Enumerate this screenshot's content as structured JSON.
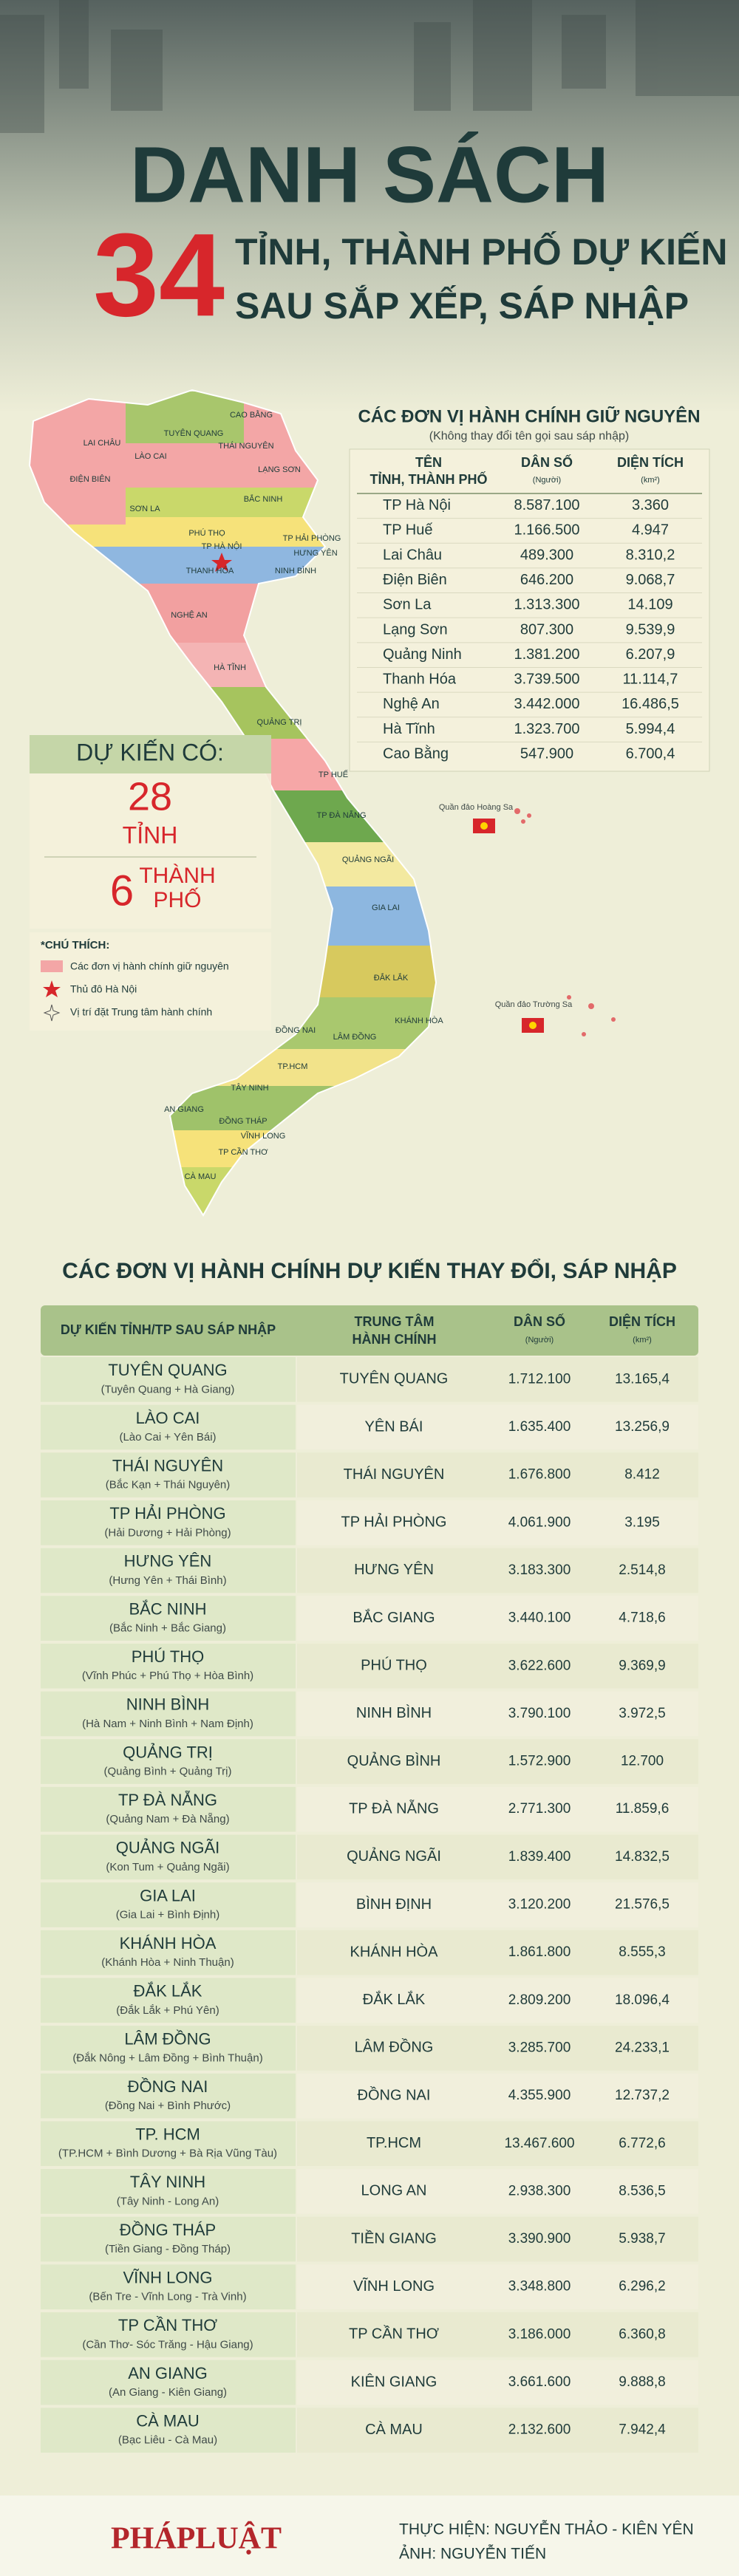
{
  "header": {
    "title_line1": "DANH SÁCH",
    "number": "34",
    "title_line2": "TỈNH, THÀNH PHỐ DỰ KIẾN",
    "title_line3": "SAU SẮP XẾP, SÁP NHẬP"
  },
  "map": {
    "labels": [
      "LAI CHÂU",
      "ĐIỆN BIÊN",
      "LÀO CAI",
      "TUYÊN QUANG",
      "CAO BẰNG",
      "THÁI NGUYÊN",
      "LẠNG SƠN",
      "SƠN LA",
      "PHÚ THỌ",
      "BẮC NINH",
      "TP HÀ NỘI",
      "TP HẢI PHÒNG",
      "HƯNG YÊN",
      "NINH BÌNH",
      "THANH HÓA",
      "NGHỆ AN",
      "HÀ TĨNH",
      "QUẢNG TRỊ",
      "TP HUẾ",
      "TP ĐÀ NẴNG",
      "QUẢNG NGÃI",
      "GIA LAI",
      "ĐẮK LẮK",
      "KHÁNH HÒA",
      "LÂM ĐỒNG",
      "ĐỒNG NAI",
      "TÂY NINH",
      "TP.HCM",
      "ĐỒNG THÁP",
      "AN GIANG",
      "VĨNH LONG",
      "TP CẦN THƠ",
      "CÀ MAU"
    ],
    "islands": [
      "Quần đảo Hoàng Sa",
      "Quần đảo Trường Sa"
    ]
  },
  "retained": {
    "title": "CÁC ĐƠN VỊ HÀNH CHÍNH GIỮ NGUYÊN",
    "subtitle": "(Không thay đổi tên gọi sau sáp nhập)",
    "columns": [
      {
        "label": "TÊN",
        "unit": "TỈNH, THÀNH PHỐ"
      },
      {
        "label": "DÂN SỐ",
        "unit": "(Người)"
      },
      {
        "label": "DIỆN TÍCH",
        "unit": "(km²)"
      }
    ],
    "rows": [
      [
        "TP Hà Nội",
        "8.587.100",
        "3.360"
      ],
      [
        "TP Huế",
        "1.166.500",
        "4.947"
      ],
      [
        "Lai Châu",
        "489.300",
        "8.310,2"
      ],
      [
        "Điện Biên",
        "646.200",
        "9.068,7"
      ],
      [
        "Sơn La",
        "1.313.300",
        "14.109"
      ],
      [
        "Lạng Sơn",
        "807.300",
        "9.539,9"
      ],
      [
        "Quảng Ninh",
        "1.381.200",
        "6.207,9"
      ],
      [
        "Thanh Hóa",
        "3.739.500",
        "11.114,7"
      ],
      [
        "Nghệ An",
        "3.442.000",
        "16.486,5"
      ],
      [
        "Hà Tĩnh",
        "1.323.700",
        "5.994,4"
      ],
      [
        "Cao Bằng",
        "547.900",
        "6.700,4"
      ]
    ]
  },
  "summary": {
    "label": "DỰ KIẾN CÓ:",
    "provinces_count": "28",
    "provinces_label": "TỈNH",
    "cities_count": "6",
    "cities_label": "THÀNH",
    "cities_label2": "PHỐ"
  },
  "legend": {
    "title": "*CHÚ THÍCH:",
    "items": [
      "Các đơn vị hành chính giữ nguyên",
      "Thủ đô Hà Nội",
      "Vị trí đặt Trung tâm hành chính"
    ]
  },
  "merged": {
    "title": "CÁC ĐƠN VỊ HÀNH CHÍNH DỰ KIẾN THAY ĐỔI, SÁP NHẬP",
    "columns": [
      {
        "label": "DỰ KIẾN TỈNH/TP SAU SÁP NHẬP",
        "unit": ""
      },
      {
        "label": "TRUNG TÂM",
        "unit": "HÀNH CHÍNH"
      },
      {
        "label": "DÂN SỐ",
        "unit": "(Người)"
      },
      {
        "label": "DIỆN TÍCH",
        "unit": "(km²)"
      }
    ],
    "rows": [
      {
        "name": "TUYÊN QUANG",
        "sub": "(Tuyên Quang + Hà Giang)",
        "center": "TUYÊN QUANG",
        "population": "1.712.100",
        "area": "13.165,4"
      },
      {
        "name": "LÀO CAI",
        "sub": "(Lào Cai + Yên Bái)",
        "center": "YÊN BÁI",
        "population": "1.635.400",
        "area": "13.256,9"
      },
      {
        "name": "THÁI NGUYÊN",
        "sub": "(Bắc Kạn + Thái Nguyên)",
        "center": "THÁI NGUYÊN",
        "population": "1.676.800",
        "area": "8.412"
      },
      {
        "name": "TP HẢI PHÒNG",
        "sub": "(Hải Dương + Hải Phòng)",
        "center": "TP HẢI PHÒNG",
        "population": "4.061.900",
        "area": "3.195"
      },
      {
        "name": "HƯNG YÊN",
        "sub": "(Hưng Yên + Thái Bình)",
        "center": "HƯNG YÊN",
        "population": "3.183.300",
        "area": "2.514,8"
      },
      {
        "name": "BẮC NINH",
        "sub": "(Bắc Ninh + Bắc Giang)",
        "center": "BẮC GIANG",
        "population": "3.440.100",
        "area": "4.718,6"
      },
      {
        "name": "PHÚ THỌ",
        "sub": "(Vĩnh Phúc + Phú Thọ + Hòa Bình)",
        "center": "PHÚ THỌ",
        "population": "3.622.600",
        "area": "9.369,9"
      },
      {
        "name": "NINH BÌNH",
        "sub": "(Hà Nam + Ninh Bình + Nam Định)",
        "center": "NINH BÌNH",
        "population": "3.790.100",
        "area": "3.972,5"
      },
      {
        "name": "QUẢNG TRỊ",
        "sub": "(Quảng Bình + Quảng Trị)",
        "center": "QUẢNG BÌNH",
        "population": "1.572.900",
        "area": "12.700"
      },
      {
        "name": "TP ĐÀ NẴNG",
        "sub": "(Quảng Nam + Đà Nẵng)",
        "center": "TP ĐÀ NẴNG",
        "population": "2.771.300",
        "area": "11.859,6"
      },
      {
        "name": "QUẢNG NGÃI",
        "sub": "(Kon Tum + Quảng Ngãi)",
        "center": "QUẢNG NGÃI",
        "population": "1.839.400",
        "area": "14.832,5"
      },
      {
        "name": "GIA LAI",
        "sub": "(Gia Lai + Bình Định)",
        "center": "BÌNH ĐỊNH",
        "population": "3.120.200",
        "area": "21.576,5"
      },
      {
        "name": "KHÁNH HÒA",
        "sub": "(Khánh Hòa + Ninh Thuận)",
        "center": "KHÁNH HÒA",
        "population": "1.861.800",
        "area": "8.555,3"
      },
      {
        "name": "ĐẮK LẮK",
        "sub": "(Đắk Lắk + Phú Yên)",
        "center": "ĐẮK LẮK",
        "population": "2.809.200",
        "area": "18.096,4"
      },
      {
        "name": "LÂM ĐỒNG",
        "sub": "(Đắk Nông + Lâm Đồng + Bình Thuận)",
        "center": "LÂM ĐỒNG",
        "population": "3.285.700",
        "area": "24.233,1"
      },
      {
        "name": "ĐỒNG NAI",
        "sub": "(Đồng Nai + Bình Phước)",
        "center": "ĐỒNG NAI",
        "population": "4.355.900",
        "area": "12.737,2"
      },
      {
        "name": "TP. HCM",
        "sub": "(TP.HCM + Bình Dương + Bà Rịa Vũng Tàu)",
        "center": "TP.HCM",
        "population": "13.467.600",
        "area": "6.772,6"
      },
      {
        "name": "TÂY NINH",
        "sub": "(Tây Ninh - Long An)",
        "center": "LONG AN",
        "population": "2.938.300",
        "area": "8.536,5"
      },
      {
        "name": "ĐỒNG THÁP",
        "sub": "(Tiền Giang - Đồng Tháp)",
        "center": "TIỀN GIANG",
        "population": "3.390.900",
        "area": "5.938,7"
      },
      {
        "name": "VĨNH LONG",
        "sub": "(Bến Tre - Vĩnh Long - Trà Vinh)",
        "center": "VĨNH LONG",
        "population": "3.348.800",
        "area": "6.296,2"
      },
      {
        "name": "TP CẦN THƠ",
        "sub": "(Cần Thơ- Sóc Trăng - Hậu Giang)",
        "center": "TP CẦN THƠ",
        "population": "3.186.000",
        "area": "6.360,8"
      },
      {
        "name": "AN GIANG",
        "sub": "(An Giang - Kiên Giang)",
        "center": "KIÊN GIANG",
        "population": "3.661.600",
        "area": "9.888,8"
      },
      {
        "name": "CÀ MAU",
        "sub": "(Bạc Liêu - Cà Mau)",
        "center": "CÀ MAU",
        "population": "2.132.600",
        "area": "7.942,4"
      }
    ]
  },
  "footer": {
    "logo": "PHÁPLUẬT",
    "credit1": "THỰC HIỆN: NGUYỄN THẢO - KIÊN YÊN",
    "credit2": "ẢNH: NGUYỄN TIẾN"
  }
}
